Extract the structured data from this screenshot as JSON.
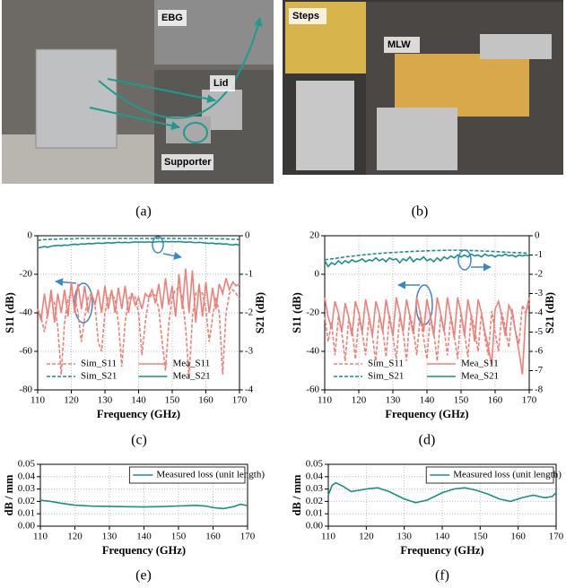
{
  "photos": {
    "a": {
      "labels": [
        "EBG",
        "Lid",
        "Supporter"
      ]
    },
    "b": {
      "labels": [
        "Steps",
        "MLW"
      ]
    }
  },
  "captions": [
    "(a)",
    "(b)",
    "(c)",
    "(d)",
    "(e)",
    "(f)"
  ],
  "chart_data": [
    {
      "type": "line",
      "xlabel": "Frequency (GHz)",
      "ylabel": "S11 (dB)",
      "y2label": "S21 (dB)",
      "xlim": [
        110,
        170
      ],
      "xticks": [
        110,
        120,
        130,
        140,
        150,
        160,
        170
      ],
      "ylim": [
        -80,
        0
      ],
      "yticks": [
        -80,
        -60,
        -40,
        -20,
        0
      ],
      "y2lim": [
        -4,
        0
      ],
      "y2ticks": [
        -4,
        -3,
        -2,
        -1,
        0
      ],
      "grid": true,
      "legend": "lower center",
      "x": [
        110,
        111,
        112,
        113,
        114,
        115,
        116,
        117,
        118,
        119,
        120,
        121,
        122,
        123,
        124,
        125,
        126,
        127,
        128,
        129,
        130,
        131,
        132,
        133,
        134,
        135,
        136,
        137,
        138,
        139,
        140,
        141,
        142,
        143,
        144,
        145,
        146,
        147,
        148,
        149,
        150,
        151,
        152,
        153,
        154,
        155,
        156,
        157,
        158,
        159,
        160,
        161,
        162,
        163,
        164,
        165,
        166,
        167,
        168,
        169,
        170
      ],
      "series": [
        {
          "name": "Sim_S11",
          "color": "#ef8078",
          "style": "dashed",
          "axis": "y",
          "values": [
            -38,
            -42,
            -50,
            -40,
            -32,
            -35,
            -48,
            -72,
            -45,
            -33,
            -30,
            -32,
            -40,
            -55,
            -42,
            -32,
            -30,
            -35,
            -55,
            -60,
            -40,
            -32,
            -30,
            -33,
            -45,
            -68,
            -45,
            -33,
            -30,
            -32,
            -40,
            -62,
            -45,
            -33,
            -30,
            -31,
            -38,
            -55,
            -70,
            -45,
            -32,
            -28,
            -27,
            -32,
            -48,
            -74,
            -42,
            -30,
            -28,
            -30,
            -38,
            -55,
            -42,
            -32,
            -40,
            -72,
            -40,
            -30,
            -28,
            -30,
            -33
          ]
        },
        {
          "name": "Mea_S11",
          "color": "#ef8078",
          "style": "solid",
          "axis": "y",
          "values": [
            -38,
            -44,
            -30,
            -42,
            -28,
            -45,
            -30,
            -40,
            -28,
            -42,
            -24,
            -40,
            -25,
            -38,
            -26,
            -40,
            -30,
            -36,
            -28,
            -40,
            -26,
            -38,
            -28,
            -40,
            -27,
            -38,
            -26,
            -40,
            -30,
            -36,
            -32,
            -38,
            -30,
            -32,
            -28,
            -35,
            -25,
            -38,
            -22,
            -36,
            -26,
            -42,
            -20,
            -38,
            -17,
            -40,
            -18,
            -45,
            -25,
            -42,
            -24,
            -40,
            -27,
            -38,
            -25,
            -30,
            -22,
            -28,
            -24,
            -26,
            -25
          ]
        },
        {
          "name": "Sim_S21",
          "color": "#1a8f88",
          "style": "dashed",
          "axis": "y2",
          "values": [
            -0.12,
            -0.11,
            -0.1,
            -0.1,
            -0.09,
            -0.09,
            -0.09,
            -0.08,
            -0.08,
            -0.08,
            -0.08,
            -0.08,
            -0.07,
            -0.07,
            -0.07,
            -0.07,
            -0.07,
            -0.07,
            -0.07,
            -0.07,
            -0.07,
            -0.07,
            -0.07,
            -0.07,
            -0.07,
            -0.07,
            -0.07,
            -0.07,
            -0.07,
            -0.07,
            -0.07,
            -0.07,
            -0.07,
            -0.07,
            -0.07,
            -0.07,
            -0.07,
            -0.07,
            -0.07,
            -0.07,
            -0.07,
            -0.07,
            -0.07,
            -0.07,
            -0.07,
            -0.07,
            -0.07,
            -0.07,
            -0.07,
            -0.07,
            -0.07,
            -0.07,
            -0.07,
            -0.08,
            -0.08,
            -0.08,
            -0.08,
            -0.09,
            -0.09,
            -0.09,
            -0.1
          ]
        },
        {
          "name": "Mea_S21",
          "color": "#1a8f88",
          "style": "solid",
          "axis": "y2",
          "values": [
            -0.32,
            -0.3,
            -0.28,
            -0.3,
            -0.27,
            -0.26,
            -0.25,
            -0.26,
            -0.24,
            -0.25,
            -0.23,
            -0.22,
            -0.23,
            -0.21,
            -0.22,
            -0.2,
            -0.21,
            -0.2,
            -0.19,
            -0.2,
            -0.19,
            -0.18,
            -0.19,
            -0.18,
            -0.17,
            -0.18,
            -0.17,
            -0.18,
            -0.17,
            -0.16,
            -0.17,
            -0.16,
            -0.17,
            -0.16,
            -0.17,
            -0.16,
            -0.15,
            -0.16,
            -0.15,
            -0.16,
            -0.15,
            -0.16,
            -0.15,
            -0.16,
            -0.17,
            -0.16,
            -0.17,
            -0.18,
            -0.17,
            -0.18,
            -0.19,
            -0.2,
            -0.19,
            -0.21,
            -0.2,
            -0.22,
            -0.21,
            -0.23,
            -0.24,
            -0.22,
            -0.25
          ]
        }
      ]
    },
    {
      "type": "line",
      "xlabel": "Frequency (GHz)",
      "ylabel": "S11 (dB)",
      "y2label": "S21 (dB)",
      "xlim": [
        110,
        170
      ],
      "xticks": [
        110,
        120,
        130,
        140,
        150,
        160,
        170
      ],
      "ylim": [
        -60,
        20
      ],
      "yticks": [
        -60,
        -40,
        -20,
        0,
        20
      ],
      "y2lim": [
        -8,
        0
      ],
      "y2ticks": [
        -8,
        -7,
        -6,
        -5,
        -4,
        -3,
        -2,
        -1,
        0
      ],
      "grid": true,
      "legend": "lower center",
      "x": [
        110,
        111,
        112,
        113,
        114,
        115,
        116,
        117,
        118,
        119,
        120,
        121,
        122,
        123,
        124,
        125,
        126,
        127,
        128,
        129,
        130,
        131,
        132,
        133,
        134,
        135,
        136,
        137,
        138,
        139,
        140,
        141,
        142,
        143,
        144,
        145,
        146,
        147,
        148,
        149,
        150,
        151,
        152,
        153,
        154,
        155,
        156,
        157,
        158,
        159,
        160,
        161,
        162,
        163,
        164,
        165,
        166,
        167,
        168,
        169,
        170
      ],
      "series": [
        {
          "name": "Sim_S11",
          "color": "#ef8078",
          "style": "dashed",
          "axis": "y",
          "values": [
            -22,
            -35,
            -25,
            -42,
            -22,
            -30,
            -45,
            -24,
            -28,
            -44,
            -23,
            -30,
            -42,
            -22,
            -32,
            -45,
            -22,
            -28,
            -43,
            -21,
            -32,
            -44,
            -22,
            -30,
            -45,
            -21,
            -28,
            -42,
            -22,
            -33,
            -44,
            -21,
            -30,
            -45,
            -22,
            -28,
            -42,
            -21,
            -32,
            -44,
            -20,
            -30,
            -43,
            -21,
            -28,
            -40,
            -20,
            -33,
            -42,
            -19,
            -30,
            -40,
            -20,
            -28,
            -38,
            -18,
            -30,
            -36,
            -16,
            -20,
            -15
          ]
        },
        {
          "name": "Mea_S11",
          "color": "#ef8078",
          "style": "solid",
          "axis": "y",
          "values": [
            -12,
            -22,
            -28,
            -14,
            -20,
            -30,
            -15,
            -22,
            -32,
            -14,
            -20,
            -30,
            -13,
            -22,
            -32,
            -14,
            -20,
            -30,
            -13,
            -23,
            -32,
            -12,
            -20,
            -30,
            -13,
            -22,
            -31,
            -12,
            -20,
            -30,
            -13,
            -22,
            -32,
            -12,
            -20,
            -30,
            -12,
            -22,
            -33,
            -12,
            -20,
            -32,
            -13,
            -22,
            -35,
            -13,
            -20,
            -30,
            -38,
            -47,
            -18,
            -14,
            -22,
            -32,
            -16,
            -20,
            -30,
            -40,
            -52,
            -20,
            -12
          ]
        },
        {
          "name": "Sim_S21",
          "color": "#1a8f88",
          "style": "dashed",
          "axis": "y2",
          "values": [
            -1.25,
            -1.22,
            -1.2,
            -1.18,
            -1.15,
            -1.13,
            -1.1,
            -1.08,
            -1.06,
            -1.04,
            -1.02,
            -1.0,
            -0.98,
            -0.96,
            -0.95,
            -0.93,
            -0.92,
            -0.9,
            -0.89,
            -0.88,
            -0.87,
            -0.86,
            -0.85,
            -0.84,
            -0.83,
            -0.82,
            -0.81,
            -0.8,
            -0.8,
            -0.79,
            -0.78,
            -0.78,
            -0.77,
            -0.77,
            -0.76,
            -0.76,
            -0.75,
            -0.75,
            -0.75,
            -0.75,
            -0.75,
            -0.76,
            -0.76,
            -0.77,
            -0.77,
            -0.78,
            -0.79,
            -0.8,
            -0.8,
            -0.81,
            -0.82,
            -0.83,
            -0.84,
            -0.85,
            -0.86,
            -0.87,
            -0.88,
            -0.88,
            -0.89,
            -0.9,
            -0.9
          ]
        },
        {
          "name": "Mea_S21",
          "color": "#1a8f88",
          "style": "solid",
          "axis": "y2",
          "values": [
            -1.3,
            -1.6,
            -1.4,
            -1.5,
            -1.3,
            -1.45,
            -1.3,
            -1.4,
            -1.25,
            -1.35,
            -1.3,
            -1.2,
            -1.35,
            -1.25,
            -1.3,
            -1.15,
            -1.3,
            -1.2,
            -1.35,
            -1.15,
            -1.25,
            -1.2,
            -1.4,
            -1.2,
            -1.3,
            -1.1,
            -1.35,
            -1.2,
            -1.25,
            -1.1,
            -1.3,
            -1.2,
            -1.35,
            -1.15,
            -1.3,
            -1.1,
            -1.2,
            -1.05,
            -1.15,
            -1.0,
            -1.1,
            -1.0,
            -1.1,
            -0.95,
            -1.05,
            -1.0,
            -1.1,
            -0.95,
            -1.05,
            -1.0,
            -1.1,
            -1.0,
            -1.05,
            -0.95,
            -1.05,
            -1.0,
            -1.1,
            -1.0,
            -1.05,
            -1.0,
            -1.05
          ]
        }
      ]
    },
    {
      "type": "line",
      "xlabel": "Frequency (GHz)",
      "ylabel": "dB / mm",
      "xlim": [
        110,
        170
      ],
      "xticks": [
        110,
        120,
        130,
        140,
        150,
        160,
        170
      ],
      "ylim": [
        0,
        0.05
      ],
      "yticks": [
        {
          "value": 0,
          "label": "0.00"
        },
        0.01,
        0.02,
        0.03,
        0.04,
        0.05
      ],
      "grid": true,
      "legend": "upper right",
      "x": [
        110,
        113,
        116,
        120,
        125,
        130,
        135,
        140,
        145,
        150,
        155,
        158,
        160,
        163,
        166,
        168,
        170
      ],
      "series": [
        {
          "name": "Measured loss (unit length)",
          "color": "#1a8f88",
          "style": "solid",
          "axis": "y",
          "values": [
            0.021,
            0.02,
            0.0185,
            0.017,
            0.0162,
            0.016,
            0.0157,
            0.0155,
            0.0158,
            0.0163,
            0.0168,
            0.0162,
            0.015,
            0.0142,
            0.0158,
            0.0178,
            0.0165
          ]
        }
      ]
    },
    {
      "type": "line",
      "xlabel": "Frequency (GHz)",
      "ylabel": "dB / mm",
      "xlim": [
        110,
        170
      ],
      "xticks": [
        110,
        120,
        130,
        140,
        150,
        160,
        170
      ],
      "ylim": [
        0,
        0.05
      ],
      "yticks": [
        {
          "value": 0,
          "label": "0.00"
        },
        0.01,
        0.02,
        0.03,
        0.04,
        0.05
      ],
      "grid": true,
      "legend": "upper right",
      "x": [
        110,
        111,
        112,
        114,
        116,
        118,
        120,
        123,
        126,
        130,
        133,
        136,
        140,
        143,
        146,
        149,
        152,
        155,
        158,
        161,
        164,
        167,
        169,
        170
      ],
      "series": [
        {
          "name": "Measured loss (unit length)",
          "color": "#1a8f88",
          "style": "solid",
          "axis": "y",
          "values": [
            0.025,
            0.033,
            0.035,
            0.032,
            0.028,
            0.029,
            0.03,
            0.031,
            0.028,
            0.022,
            0.019,
            0.021,
            0.027,
            0.03,
            0.031,
            0.029,
            0.026,
            0.022,
            0.02,
            0.023,
            0.025,
            0.023,
            0.024,
            0.027
          ]
        }
      ]
    }
  ]
}
